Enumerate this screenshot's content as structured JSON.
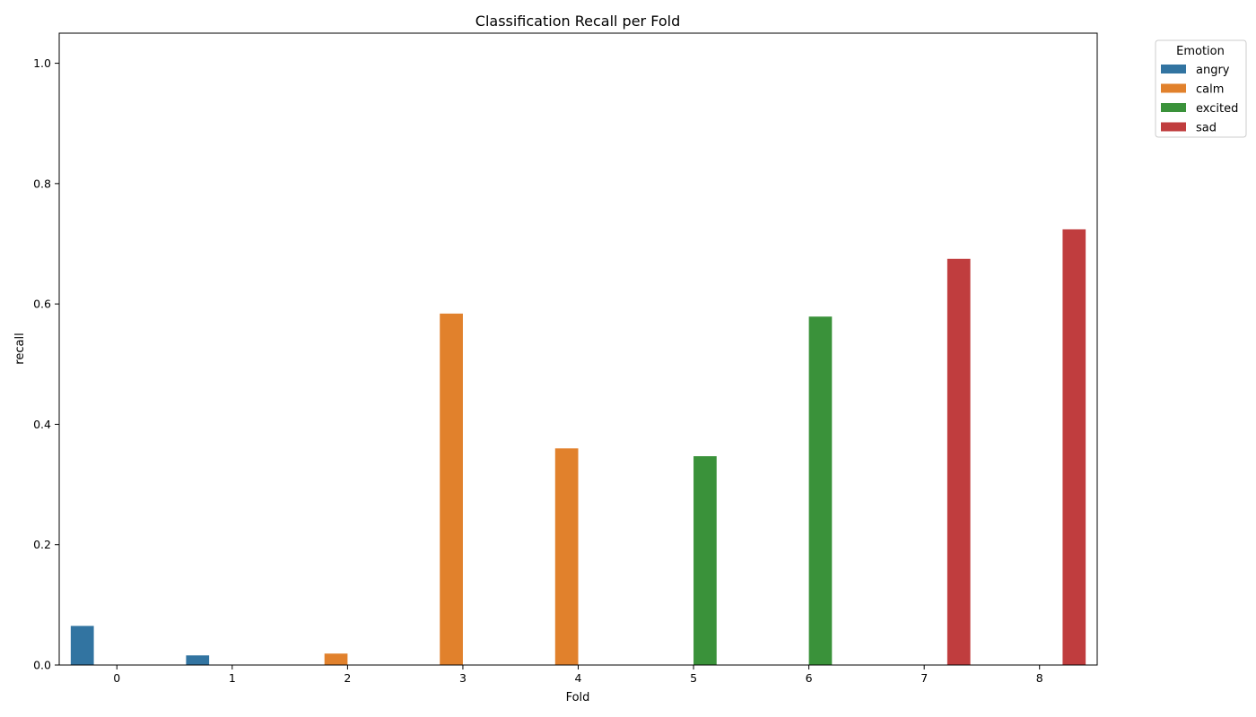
{
  "chart_data": {
    "type": "bar",
    "title": "Classification Recall per Fold",
    "xlabel": "Fold",
    "ylabel": "recall",
    "categories": [
      "0",
      "1",
      "2",
      "3",
      "4",
      "5",
      "6",
      "7",
      "8"
    ],
    "ylim": [
      0,
      1.05
    ],
    "yticks": [
      0.0,
      0.2,
      0.4,
      0.6,
      0.8,
      1.0
    ],
    "ytick_labels": [
      "0.0",
      "0.2",
      "0.4",
      "0.6",
      "0.8",
      "1.0"
    ],
    "grid": false,
    "legend": {
      "title": "Emotion",
      "placement": "outside-top-right"
    },
    "series": [
      {
        "name": "angry",
        "color": "#3274a1",
        "values": [
          0.065,
          0.016,
          0,
          0,
          0,
          0,
          0,
          0,
          0
        ]
      },
      {
        "name": "calm",
        "color": "#e1812c",
        "values": [
          0,
          0,
          0.019,
          0.584,
          0.36,
          0,
          0,
          0,
          0
        ]
      },
      {
        "name": "excited",
        "color": "#3a923a",
        "values": [
          0,
          0,
          0,
          0,
          0,
          0.347,
          0.579,
          0,
          0
        ]
      },
      {
        "name": "sad",
        "color": "#c03d3e",
        "values": [
          0,
          0,
          0,
          0,
          0,
          0,
          0,
          0.675,
          0.724
        ]
      }
    ]
  }
}
